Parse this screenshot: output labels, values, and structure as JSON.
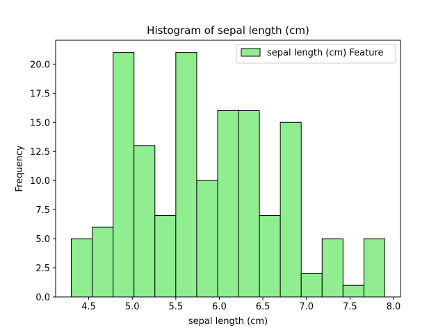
{
  "chart_data": {
    "type": "bar",
    "title": "Histogram of sepal length (cm)",
    "xlabel": "sepal length (cm)",
    "ylabel": "Frequency",
    "xlim": [
      4.12,
      8.08
    ],
    "ylim": [
      0,
      22.05
    ],
    "x_ticks": [
      "4.5",
      "5.0",
      "5.5",
      "6.0",
      "6.5",
      "7.0",
      "7.5",
      "8.0"
    ],
    "y_ticks": [
      "0.0",
      "2.5",
      "5.0",
      "7.5",
      "10.0",
      "12.5",
      "15.0",
      "17.5",
      "20.0"
    ],
    "bin_edges": [
      4.3,
      4.54,
      4.78,
      5.02,
      5.26,
      5.5,
      5.74,
      5.98,
      6.22,
      6.46,
      6.7,
      6.94,
      7.18,
      7.42,
      7.66,
      7.9
    ],
    "values": [
      5,
      6,
      21,
      13,
      7,
      21,
      10,
      16,
      16,
      7,
      15,
      2,
      5,
      1,
      5
    ],
    "series": [
      {
        "name": "sepal length (cm) Feature",
        "values": [
          5,
          6,
          21,
          13,
          7,
          21,
          10,
          16,
          16,
          7,
          15,
          2,
          5,
          1,
          5
        ]
      }
    ],
    "grid": false,
    "legend": "top-right",
    "colors": {
      "bar_fill": "#90ee90",
      "bar_edge": "#000000"
    }
  }
}
